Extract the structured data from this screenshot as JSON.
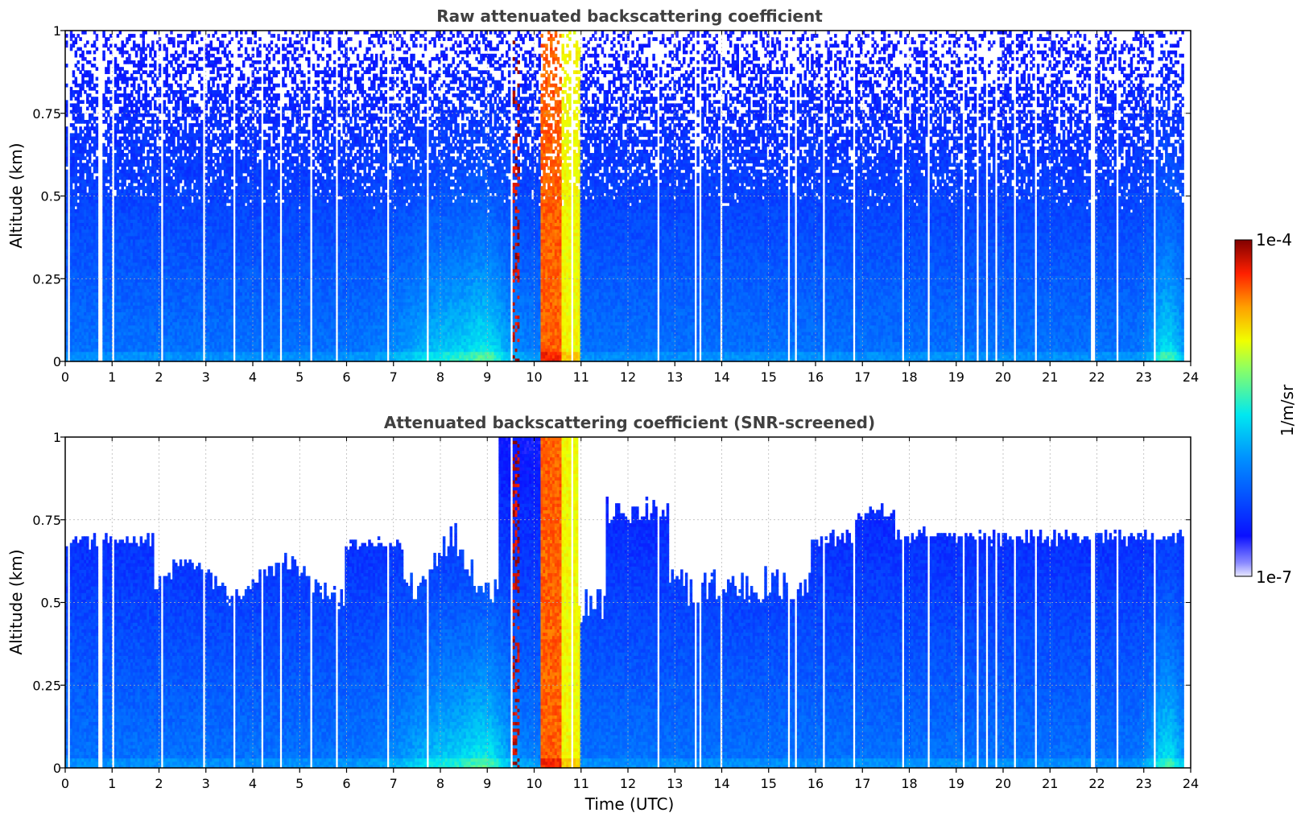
{
  "chart_data": [
    {
      "type": "heatmap",
      "title": "Raw attenuated backscattering coefficient",
      "xlabel": "",
      "ylabel": "Altitude (km)",
      "xlim": [
        0,
        24
      ],
      "ylim": [
        0,
        1
      ],
      "x_ticks": [
        "0",
        "1",
        "2",
        "3",
        "4",
        "5",
        "6",
        "7",
        "8",
        "9",
        "10",
        "11",
        "12",
        "13",
        "14",
        "15",
        "16",
        "17",
        "18",
        "19",
        "20",
        "21",
        "22",
        "23",
        "24"
      ],
      "y_ticks": [
        "0",
        "0.25",
        "0.5",
        "0.75",
        "1"
      ],
      "grid": true,
      "screened": false
    },
    {
      "type": "heatmap",
      "title": "Attenuated backscattering coefficient (SNR-screened)",
      "xlabel": "Time (UTC)",
      "ylabel": "Altitude (km)",
      "xlim": [
        0,
        24
      ],
      "ylim": [
        0,
        1
      ],
      "x_ticks": [
        "0",
        "1",
        "2",
        "3",
        "4",
        "5",
        "6",
        "7",
        "8",
        "9",
        "10",
        "11",
        "12",
        "13",
        "14",
        "15",
        "16",
        "17",
        "18",
        "19",
        "20",
        "21",
        "22",
        "23",
        "24"
      ],
      "y_ticks": [
        "0",
        "0.25",
        "0.5",
        "0.75",
        "1"
      ],
      "grid": true,
      "screened": true
    }
  ],
  "colorbar": {
    "max_label": "1e-4",
    "min_label": "1e-7",
    "unit_label": "1/m/sr",
    "scale": "log",
    "colormap": "jet"
  },
  "colors": {
    "title": "#404040",
    "axes": "#000000",
    "grid": "#b0b0b0"
  }
}
